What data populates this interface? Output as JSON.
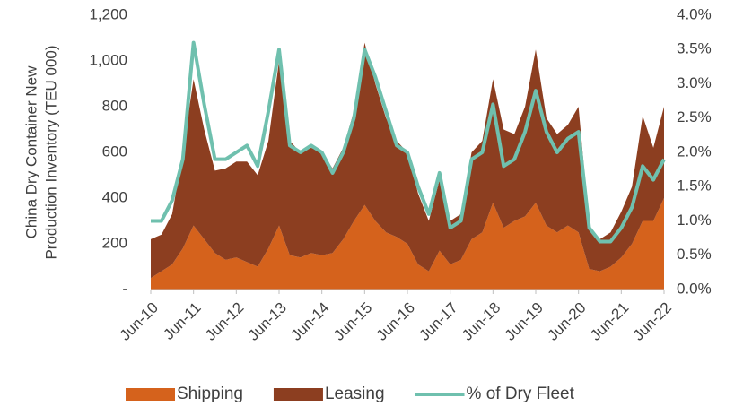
{
  "chart_data": {
    "type": "stacked-area-line",
    "ylabel": [
      "China Dry Container New",
      "Production Inventory (TEU 000)"
    ],
    "categories": [
      "Jun-10",
      null,
      null,
      null,
      "Jun-11",
      null,
      null,
      null,
      "Jun-12",
      null,
      null,
      null,
      "Jun-13",
      null,
      null,
      null,
      "Jun-14",
      null,
      null,
      null,
      "Jun-15",
      null,
      null,
      null,
      "Jun-16",
      null,
      null,
      null,
      "Jun-17",
      null,
      null,
      null,
      "Jun-18",
      null,
      null,
      null,
      "Jun-19",
      null,
      null,
      null,
      "Jun-20",
      null,
      null,
      null,
      "Jun-21",
      null,
      null,
      null,
      "Jun-22"
    ],
    "series": [
      {
        "name": "Shipping",
        "color": "#d5621c",
        "kind": "area",
        "values": [
          50,
          80,
          110,
          180,
          280,
          220,
          160,
          130,
          140,
          120,
          100,
          180,
          280,
          150,
          140,
          160,
          150,
          160,
          220,
          300,
          370,
          300,
          250,
          230,
          200,
          110,
          80,
          170,
          110,
          130,
          220,
          250,
          380,
          270,
          300,
          320,
          380,
          280,
          250,
          280,
          250,
          90,
          80,
          100,
          140,
          200,
          300,
          300,
          400
        ]
      },
      {
        "name": "Leasing",
        "color": "#8c3e20",
        "kind": "area",
        "values": [
          170,
          160,
          220,
          420,
          640,
          480,
          360,
          400,
          420,
          440,
          400,
          470,
          720,
          500,
          460,
          460,
          450,
          370,
          400,
          480,
          710,
          600,
          500,
          420,
          400,
          310,
          220,
          310,
          190,
          200,
          380,
          400,
          540,
          430,
          380,
          480,
          670,
          470,
          430,
          440,
          550,
          190,
          140,
          150,
          200,
          250,
          460,
          320,
          400
        ]
      },
      {
        "name": "% of Dry Fleet",
        "color": "#6fc0ae",
        "kind": "line",
        "axis": "y2",
        "values": [
          1.0,
          1.0,
          1.3,
          1.9,
          3.6,
          2.7,
          1.9,
          1.9,
          2.0,
          2.1,
          1.8,
          2.6,
          3.5,
          2.1,
          2.0,
          2.1,
          2.0,
          1.7,
          2.0,
          2.5,
          3.5,
          3.1,
          2.6,
          2.1,
          2.0,
          1.5,
          1.1,
          1.7,
          0.9,
          1.0,
          1.9,
          2.0,
          2.7,
          1.8,
          1.9,
          2.3,
          2.9,
          2.3,
          2.0,
          2.2,
          2.3,
          0.9,
          0.7,
          0.7,
          0.9,
          1.2,
          1.8,
          1.6,
          1.9
        ]
      }
    ],
    "ylim": [
      0,
      1200
    ],
    "yticks": [
      {
        "value": 0,
        "label": "-"
      },
      200,
      400,
      600,
      800,
      {
        "value": 1000,
        "label": "1,000"
      },
      {
        "value": 1200,
        "label": "1,200"
      }
    ],
    "y2lim": [
      0,
      4
    ],
    "y2ticks": [
      {
        "value": 0,
        "label": "0.0%"
      },
      {
        "value": 0.5,
        "label": "0.5%"
      },
      {
        "value": 1,
        "label": "1.0%"
      },
      {
        "value": 1.5,
        "label": "1.5%"
      },
      {
        "value": 2,
        "label": "2.0%"
      },
      {
        "value": 2.5,
        "label": "2.5%"
      },
      {
        "value": 3,
        "label": "3.0%"
      },
      {
        "value": 3.5,
        "label": "3.5%"
      },
      {
        "value": 4,
        "label": "4.0%"
      }
    ],
    "legend": "bottom"
  }
}
